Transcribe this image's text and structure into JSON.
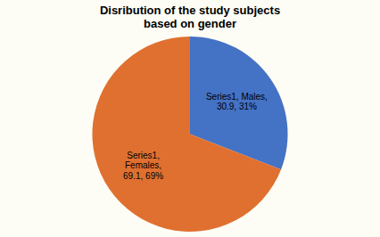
{
  "chart_data": {
    "type": "pie",
    "title": "Disribution of the study subjects\nbased on gender",
    "categories": [
      "Series1, Males,\n30.9, 31%",
      "Series1,\nFemales,\n69.1, 69%"
    ],
    "values": [
      30.9,
      69.1
    ],
    "colors": [
      "#4472C4",
      "#E07030"
    ]
  }
}
